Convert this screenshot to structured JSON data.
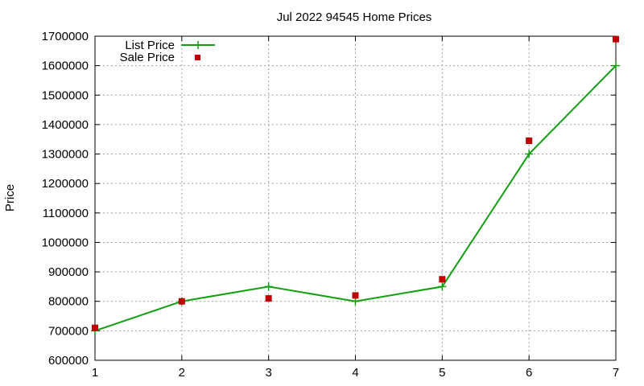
{
  "chart_data": {
    "type": "line",
    "title": "Jul 2022 94545 Home Prices",
    "xlabel": "",
    "ylabel": "Price",
    "x": [
      1,
      2,
      3,
      4,
      5,
      6,
      7
    ],
    "xlim": [
      1,
      7
    ],
    "ylim": [
      600000,
      1700000
    ],
    "yticks": [
      600000,
      700000,
      800000,
      900000,
      1000000,
      1100000,
      1200000,
      1300000,
      1400000,
      1500000,
      1600000,
      1700000
    ],
    "xticks": [
      1,
      2,
      3,
      4,
      5,
      6,
      7
    ],
    "grid": true,
    "legend_position": "top-left",
    "series": [
      {
        "name": "List Price",
        "style": "line+cross",
        "color": "#129f12",
        "values": [
          700000,
          800000,
          850000,
          800000,
          850000,
          1300000,
          1600000
        ]
      },
      {
        "name": "Sale Price",
        "style": "square",
        "color": "#c00000",
        "values": [
          710000,
          800000,
          810000,
          820000,
          875000,
          1345000,
          1690000
        ]
      }
    ]
  }
}
